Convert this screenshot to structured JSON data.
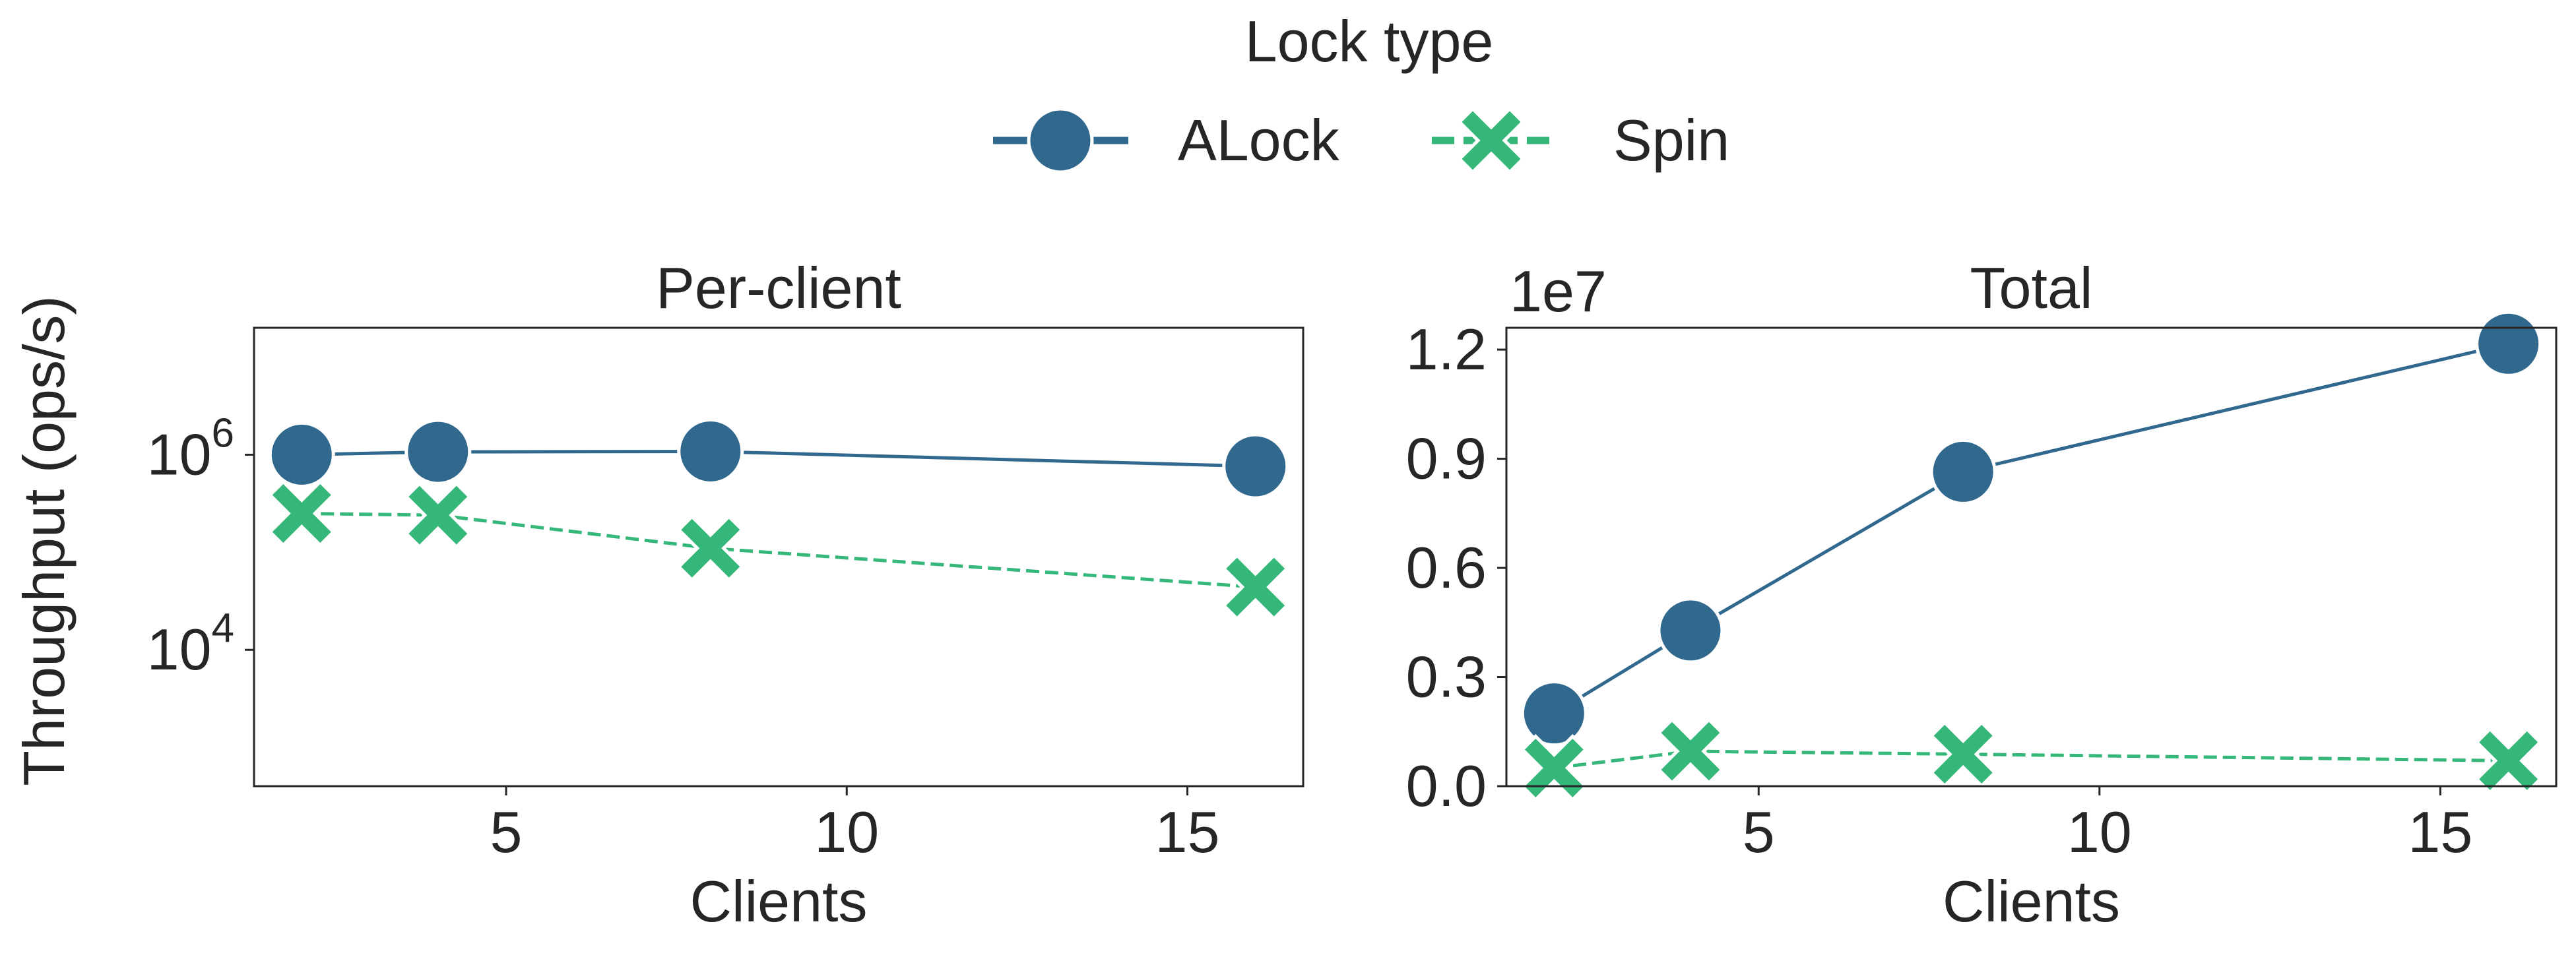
{
  "legend": {
    "title": "Lock type",
    "placement": "top-center",
    "entries": [
      {
        "label": "ALock",
        "color": "#31688e",
        "marker": "circle",
        "line": "solid"
      },
      {
        "label": "Spin",
        "color": "#35b779",
        "marker": "x",
        "line": "dashed"
      }
    ]
  },
  "shared_ylabel": "Throughput (ops/s)",
  "chart_data": [
    {
      "type": "line",
      "title": "Per-client",
      "xlabel": "Clients",
      "ylabel": "Throughput (ops/s)",
      "yscale": "log",
      "xlim": [
        1.3,
        16.7
      ],
      "ylim": [
        400,
        20000000
      ],
      "xticks": [
        5,
        10,
        15
      ],
      "xtick_labels": [
        "5",
        "10",
        "15"
      ],
      "yticks": [
        10000,
        1000000
      ],
      "ytick_labels": [
        {
          "base": "10",
          "exp": "4"
        },
        {
          "base": "10",
          "exp": "6"
        }
      ],
      "x": [
        2,
        4,
        8,
        16
      ],
      "series": [
        {
          "name": "ALock",
          "values": [
            1000000,
            1070000,
            1080000,
            760000
          ]
        },
        {
          "name": "Spin",
          "values": [
            250000,
            240000,
            110000,
            44000
          ]
        }
      ],
      "grid": false
    },
    {
      "type": "line",
      "title": "Total",
      "xlabel": "Clients",
      "ylabel": "",
      "yscale": "linear",
      "offset_label": "1e7",
      "xlim": [
        1.3,
        16.7
      ],
      "ylim": [
        0,
        12600000
      ],
      "xticks": [
        5,
        10,
        15
      ],
      "xtick_labels": [
        "5",
        "10",
        "15"
      ],
      "yticks": [
        0,
        3000000,
        6000000,
        9000000,
        12000000
      ],
      "ytick_labels": [
        "0.0",
        "0.3",
        "0.6",
        "0.9",
        "1.2"
      ],
      "x": [
        2,
        4,
        8,
        16
      ],
      "series": [
        {
          "name": "ALock",
          "values": [
            2000000,
            4280000,
            8640000,
            12160000
          ]
        },
        {
          "name": "Spin",
          "values": [
            500000,
            960000,
            880000,
            700000
          ]
        }
      ],
      "grid": false
    }
  ]
}
